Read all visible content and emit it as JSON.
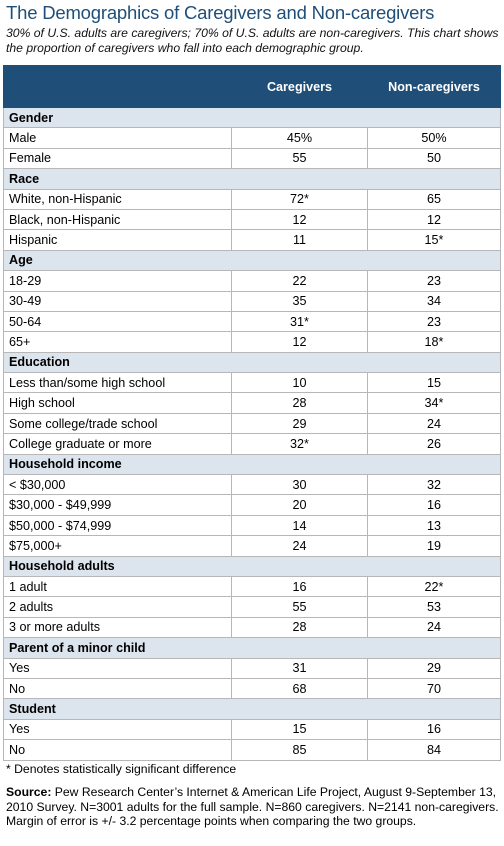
{
  "title": "The Demographics of Caregivers and Non-caregivers",
  "subtitle": "30% of U.S. adults are caregivers; 70% of U.S. adults are non-caregivers. This chart shows the proportion of caregivers who fall into each demographic group.",
  "columns": [
    "",
    "Caregivers",
    "Non-caregivers"
  ],
  "sections": [
    {
      "label": "Gender",
      "rows": [
        {
          "label": "Male",
          "caregivers": "45%",
          "noncaregivers": "50%"
        },
        {
          "label": "Female",
          "caregivers": "55",
          "noncaregivers": "50"
        }
      ]
    },
    {
      "label": "Race",
      "rows": [
        {
          "label": "White, non-Hispanic",
          "caregivers": "72*",
          "noncaregivers": "65"
        },
        {
          "label": "Black, non-Hispanic",
          "caregivers": "12",
          "noncaregivers": "12"
        },
        {
          "label": "Hispanic",
          "caregivers": "11",
          "noncaregivers": "15*"
        }
      ]
    },
    {
      "label": "Age",
      "rows": [
        {
          "label": "18-29",
          "caregivers": "22",
          "noncaregivers": "23"
        },
        {
          "label": "30-49",
          "caregivers": "35",
          "noncaregivers": "34"
        },
        {
          "label": "50-64",
          "caregivers": "31*",
          "noncaregivers": "23"
        },
        {
          "label": "65+",
          "caregivers": "12",
          "noncaregivers": "18*"
        }
      ]
    },
    {
      "label": "Education",
      "rows": [
        {
          "label": "Less than/some high school",
          "caregivers": "10",
          "noncaregivers": "15"
        },
        {
          "label": "High school",
          "caregivers": "28",
          "noncaregivers": "34*"
        },
        {
          "label": "Some college/trade school",
          "caregivers": "29",
          "noncaregivers": "24"
        },
        {
          "label": "College graduate or more",
          "caregivers": "32*",
          "noncaregivers": "26"
        }
      ]
    },
    {
      "label": "Household income",
      "rows": [
        {
          "label": "< $30,000",
          "caregivers": "30",
          "noncaregivers": "32"
        },
        {
          "label": "$30,000 - $49,999",
          "caregivers": "20",
          "noncaregivers": "16"
        },
        {
          "label": "$50,000 - $74,999",
          "caregivers": "14",
          "noncaregivers": "13"
        },
        {
          "label": "$75,000+",
          "caregivers": "24",
          "noncaregivers": "19"
        }
      ]
    },
    {
      "label": "Household adults",
      "rows": [
        {
          "label": "1 adult",
          "caregivers": "16",
          "noncaregivers": "22*"
        },
        {
          "label": "2 adults",
          "caregivers": "55",
          "noncaregivers": "53"
        },
        {
          "label": "3 or more adults",
          "caregivers": "28",
          "noncaregivers": "24"
        }
      ]
    },
    {
      "label": "Parent of a minor child",
      "rows": [
        {
          "label": "Yes",
          "caregivers": "31",
          "noncaregivers": "29"
        },
        {
          "label": "No",
          "caregivers": "68",
          "noncaregivers": "70"
        }
      ]
    },
    {
      "label": "Student",
      "rows": [
        {
          "label": "Yes",
          "caregivers": "15",
          "noncaregivers": "16"
        },
        {
          "label": "No",
          "caregivers": "85",
          "noncaregivers": "84"
        }
      ]
    }
  ],
  "note": "* Denotes statistically significant difference",
  "source_label": "Source:",
  "source_text": " Pew Research Center’s Internet & American Life Project, August 9-September 13, 2010 Survey. N=3001 adults for the full sample. N=860 caregivers. N=2141 non-caregivers. Margin of error is +/- 3.2 percentage points when comparing the two groups."
}
